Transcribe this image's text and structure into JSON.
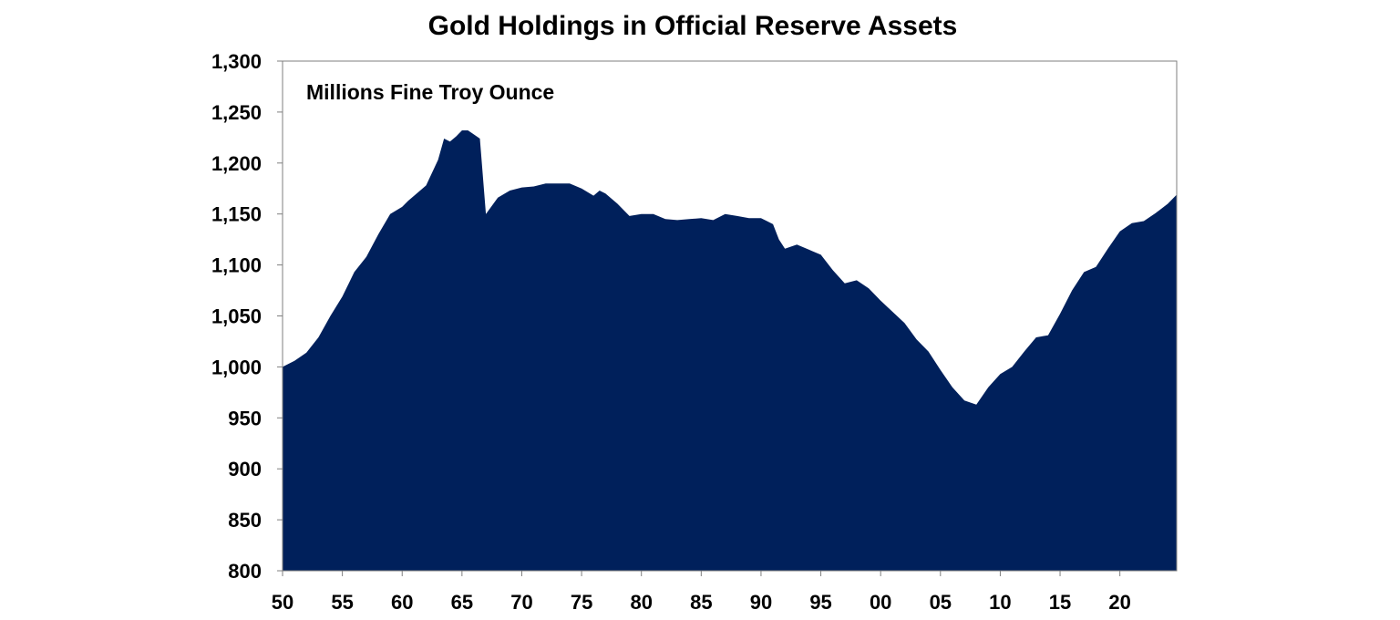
{
  "chart_data": {
    "type": "area",
    "title": "Gold Holdings in Official Reserve Assets",
    "annotation": "Millions Fine Troy Ounce",
    "xlabel": "",
    "ylabel": "",
    "xlim": [
      1950,
      2024.75
    ],
    "ylim": [
      800,
      1300
    ],
    "grid": false,
    "legend": "none",
    "color": "#00205b",
    "x_tick_labels": [
      {
        "x": 1950,
        "label": "50"
      },
      {
        "x": 1955,
        "label": "55"
      },
      {
        "x": 1960,
        "label": "60"
      },
      {
        "x": 1965,
        "label": "65"
      },
      {
        "x": 1970,
        "label": "70"
      },
      {
        "x": 1975,
        "label": "75"
      },
      {
        "x": 1980,
        "label": "80"
      },
      {
        "x": 1985,
        "label": "85"
      },
      {
        "x": 1990,
        "label": "90"
      },
      {
        "x": 1995,
        "label": "95"
      },
      {
        "x": 2000,
        "label": "00"
      },
      {
        "x": 2005,
        "label": "05"
      },
      {
        "x": 2010,
        "label": "10"
      },
      {
        "x": 2015,
        "label": "15"
      },
      {
        "x": 2020,
        "label": "20"
      }
    ],
    "y_tick_labels": [
      {
        "y": 800,
        "label": "800"
      },
      {
        "y": 850,
        "label": "850"
      },
      {
        "y": 900,
        "label": "900"
      },
      {
        "y": 950,
        "label": "950"
      },
      {
        "y": 1000,
        "label": "1,000"
      },
      {
        "y": 1050,
        "label": "1,050"
      },
      {
        "y": 1100,
        "label": "1,100"
      },
      {
        "y": 1150,
        "label": "1,150"
      },
      {
        "y": 1200,
        "label": "1,200"
      },
      {
        "y": 1250,
        "label": "1,250"
      },
      {
        "y": 1300,
        "label": "1,300"
      }
    ],
    "series": [
      {
        "x": [
          1950,
          1951,
          1952,
          1953,
          1954,
          1955,
          1956,
          1957,
          1958,
          1959,
          1960,
          1960.5,
          1961,
          1962,
          1963,
          1963.5,
          1964,
          1964.5,
          1965,
          1965.5,
          1966,
          1966.5,
          1967,
          1968,
          1969,
          1970,
          1971,
          1972,
          1973,
          1974,
          1975,
          1976,
          1976.5,
          1977,
          1978,
          1979,
          1980,
          1981,
          1982,
          1983,
          1984,
          1985,
          1986,
          1987,
          1988,
          1989,
          1990,
          1990.5,
          1991,
          1991.5,
          1992,
          1993,
          1994,
          1995,
          1996,
          1997,
          1998,
          1999,
          2000,
          2001,
          2002,
          2003,
          2004,
          2005,
          2006,
          2007,
          2007.5,
          2008,
          2009,
          2010,
          2011,
          2012,
          2013,
          2014,
          2015,
          2016,
          2017,
          2018,
          2019,
          2020,
          2021,
          2022,
          2023,
          2024,
          2024.75
        ],
        "y": [
          1000,
          1006,
          1014,
          1029,
          1050,
          1069,
          1093,
          1108,
          1130,
          1150,
          1157,
          1163,
          1168,
          1178,
          1203,
          1224,
          1221,
          1226,
          1232,
          1232,
          1228,
          1224,
          1150,
          1166,
          1173,
          1176,
          1177,
          1180,
          1180,
          1180,
          1175,
          1168,
          1173,
          1170,
          1160,
          1148,
          1150,
          1150,
          1145,
          1144,
          1145,
          1146,
          1144,
          1150,
          1148,
          1146,
          1146,
          1143,
          1140,
          1125,
          1116,
          1120,
          1115,
          1110,
          1095,
          1082,
          1085,
          1077,
          1065,
          1054,
          1043,
          1027,
          1015,
          997,
          980,
          967,
          965,
          963,
          980,
          993,
          1000,
          1015,
          1029,
          1031,
          1052,
          1075,
          1093,
          1098,
          1116,
          1133,
          1141,
          1143,
          1151,
          1160,
          1169
        ]
      }
    ]
  }
}
